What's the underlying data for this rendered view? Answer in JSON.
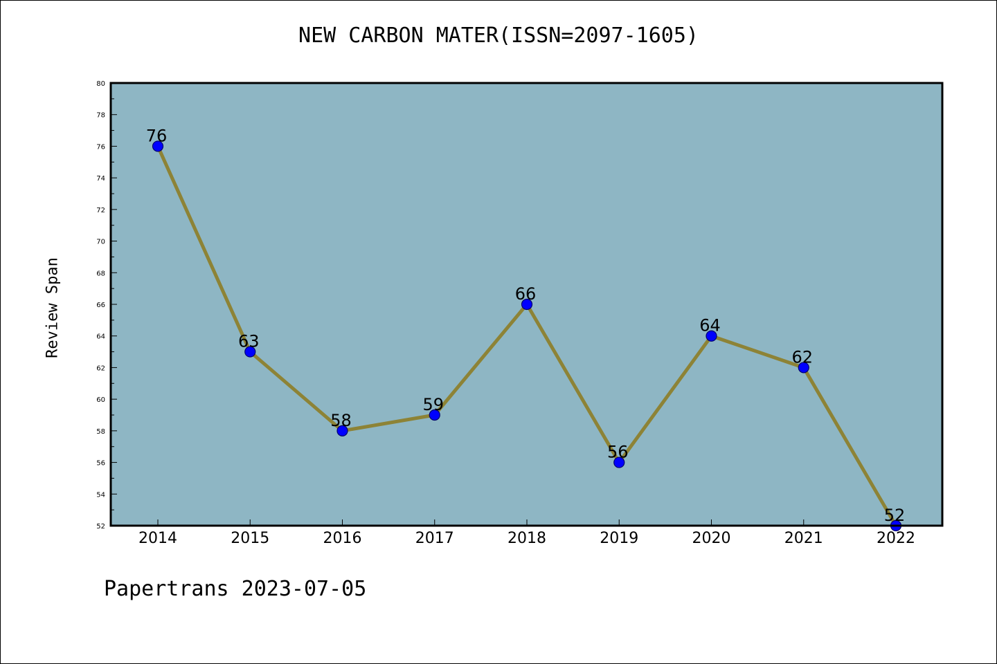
{
  "chart_data": {
    "type": "line",
    "title": "NEW CARBON MATER(ISSN=2097-1605)",
    "ylabel": "Review Span",
    "xlabel": "",
    "categories": [
      "2014",
      "2015",
      "2016",
      "2017",
      "2018",
      "2019",
      "2020",
      "2021",
      "2022"
    ],
    "series": [
      {
        "values": [
          76,
          63,
          58,
          59,
          66,
          56,
          64,
          62,
          52
        ]
      }
    ],
    "data_labels": [
      "76",
      "63",
      "58",
      "59",
      "66",
      "56",
      "64",
      "62",
      "52"
    ],
    "y_ticks": [
      "52",
      "54",
      "56",
      "58",
      "60",
      "62",
      "64",
      "66",
      "68",
      "70",
      "72",
      "74",
      "76",
      "78",
      "80"
    ],
    "ylim": [
      52,
      80
    ],
    "grid": false,
    "colors": {
      "plot_background": "#8eb6c4",
      "line": "#8d8336",
      "marker": "#0000ff"
    }
  },
  "footer": {
    "text": "Papertrans 2023-07-05"
  }
}
